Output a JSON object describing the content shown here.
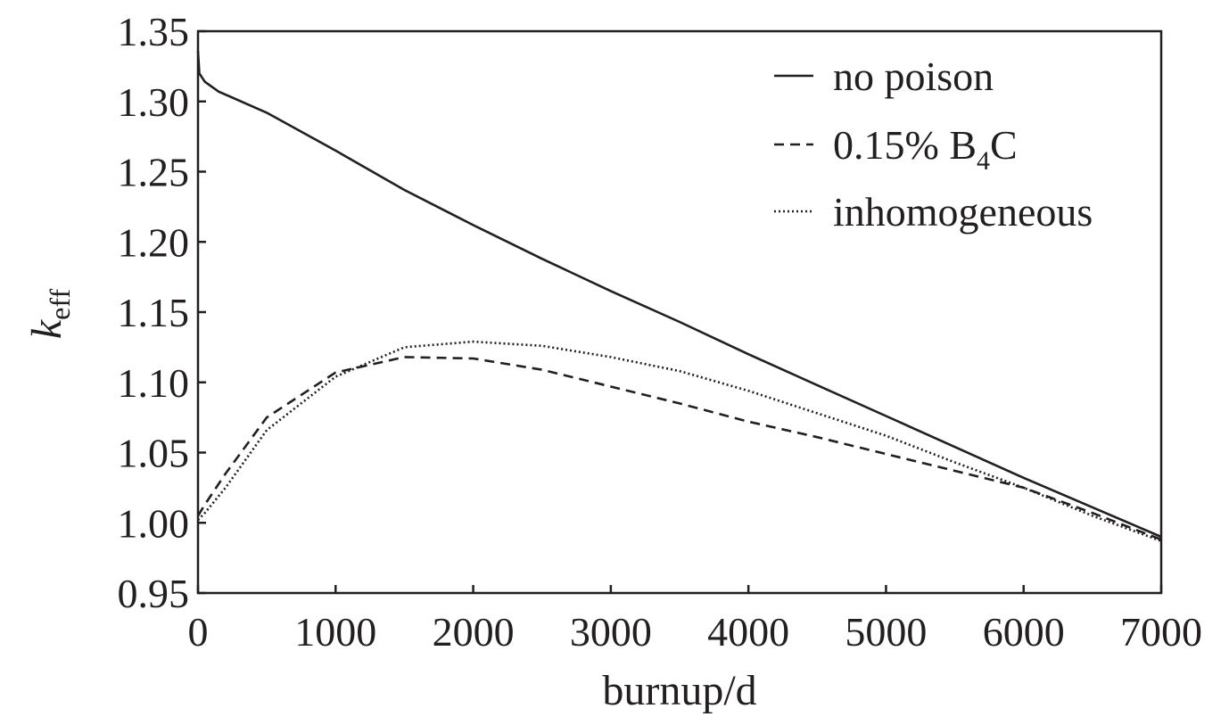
{
  "chart_data": {
    "type": "line",
    "xlabel": "burnup/d",
    "ylabel": {
      "main": "k",
      "sub": "eff"
    },
    "xlim": [
      0,
      7000
    ],
    "ylim": [
      0.95,
      1.35
    ],
    "xticks": [
      0,
      1000,
      2000,
      3000,
      4000,
      5000,
      6000,
      7000
    ],
    "xtick_labels": [
      "0",
      "1000",
      "2000",
      "3000",
      "4000",
      "5000",
      "6000",
      "7000"
    ],
    "yticks": [
      0.95,
      1.0,
      1.05,
      1.1,
      1.15,
      1.2,
      1.25,
      1.3,
      1.35
    ],
    "ytick_labels": [
      "0.95",
      "1.00",
      "1.05",
      "1.10",
      "1.15",
      "1.20",
      "1.25",
      "1.30",
      "1.35"
    ],
    "grid": false,
    "legend_position": "top-right",
    "series": [
      {
        "name": "no poison",
        "legend": {
          "text": "no poison",
          "sub": "",
          "tail": ""
        },
        "style": "solid",
        "x": [
          0,
          10,
          50,
          150,
          500,
          1000,
          1500,
          2000,
          2500,
          3000,
          3500,
          4000,
          4500,
          5000,
          5500,
          6000,
          6500,
          7000
        ],
        "y": [
          1.336,
          1.32,
          1.314,
          1.307,
          1.292,
          1.265,
          1.237,
          1.212,
          1.188,
          1.165,
          1.143,
          1.12,
          1.098,
          1.076,
          1.054,
          1.032,
          1.011,
          0.99
        ]
      },
      {
        "name": "0.15% B4C",
        "legend": {
          "text": "0.15% B",
          "sub": "4",
          "tail": "C"
        },
        "style": "dashed",
        "x": [
          0,
          50,
          200,
          500,
          1000,
          1500,
          2000,
          2500,
          3000,
          3500,
          4000,
          4500,
          5000,
          5500,
          6000,
          6500,
          7000
        ],
        "y": [
          1.005,
          1.013,
          1.035,
          1.075,
          1.107,
          1.118,
          1.117,
          1.109,
          1.097,
          1.085,
          1.072,
          1.061,
          1.049,
          1.037,
          1.025,
          1.007,
          0.988
        ]
      },
      {
        "name": "inhomogeneous",
        "legend": {
          "text": "inhomogeneous",
          "sub": "",
          "tail": ""
        },
        "style": "dotted",
        "x": [
          0,
          50,
          200,
          500,
          1000,
          1500,
          2000,
          2500,
          3000,
          3500,
          4000,
          4500,
          5000,
          5500,
          6000,
          6500,
          7000
        ],
        "y": [
          1.002,
          1.007,
          1.025,
          1.066,
          1.104,
          1.125,
          1.129,
          1.126,
          1.118,
          1.108,
          1.094,
          1.078,
          1.062,
          1.043,
          1.025,
          1.005,
          0.987
        ]
      }
    ]
  }
}
